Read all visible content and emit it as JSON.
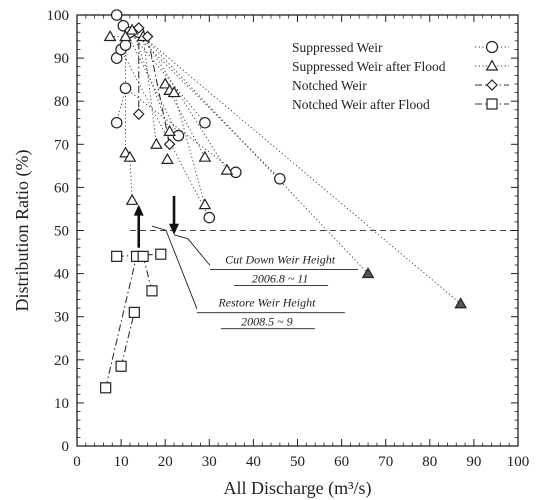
{
  "chart_data": {
    "type": "scatter",
    "xlabel": "All Discharge (m³/s)",
    "ylabel": "Distribution Ratio (%)",
    "xlim": [
      0,
      100
    ],
    "ylim": [
      0,
      100
    ],
    "xticks": [
      "0",
      "10",
      "20",
      "30",
      "40",
      "50",
      "60",
      "70",
      "80",
      "90",
      "100"
    ],
    "yticks": [
      "0",
      "10",
      "20",
      "30",
      "40",
      "50",
      "60",
      "70",
      "80",
      "90",
      "100"
    ],
    "grid": false,
    "legend_position": "top-right",
    "reference_line_y": 50,
    "series": [
      {
        "name": "Suppressed Weir",
        "marker": "circle",
        "line": "dotted",
        "points": [
          [
            9,
            100
          ],
          [
            10.5,
            97.5
          ],
          [
            12,
            96
          ],
          [
            9,
            90
          ],
          [
            10,
            92
          ],
          [
            11,
            93
          ],
          [
            9,
            75
          ],
          [
            11,
            83
          ],
          [
            14,
            96
          ],
          [
            23,
            72
          ],
          [
            29,
            75
          ],
          [
            30,
            53
          ],
          [
            36,
            63.5
          ],
          [
            46,
            62
          ]
        ]
      },
      {
        "name": "Suppressed Weir after Flood",
        "marker": "triangle",
        "line": "dotted",
        "points": [
          [
            7.5,
            95
          ],
          [
            11,
            95
          ],
          [
            12.5,
            96.5
          ],
          [
            15,
            95
          ],
          [
            11,
            68
          ],
          [
            12,
            67
          ],
          [
            18,
            70
          ],
          [
            20,
            84
          ],
          [
            21,
            82.5
          ],
          [
            22,
            82
          ],
          [
            21,
            73
          ],
          [
            20.5,
            66.5
          ],
          [
            29,
            67
          ],
          [
            29,
            56
          ],
          [
            34,
            64
          ],
          [
            12.5,
            57
          ],
          [
            66,
            40
          ],
          [
            87,
            33
          ]
        ]
      },
      {
        "name": "Notched Weir",
        "marker": "diamond",
        "line": "dashdot",
        "points": [
          [
            14,
            97
          ],
          [
            16,
            95
          ],
          [
            14,
            77
          ],
          [
            21,
            70
          ]
        ]
      },
      {
        "name": "Notched Weir after Flood",
        "marker": "square",
        "line": "dashdot",
        "points": [
          [
            6.5,
            13.5
          ],
          [
            10,
            18.5
          ],
          [
            13,
            31
          ],
          [
            13.5,
            44
          ],
          [
            15,
            44
          ],
          [
            9,
            44
          ],
          [
            17,
            36
          ],
          [
            19,
            44.5
          ]
        ]
      }
    ],
    "connectors": [
      {
        "series": 0,
        "from": 0,
        "to": 13
      },
      {
        "series": 0,
        "from": 1,
        "to": 9
      },
      {
        "series": 0,
        "from": 2,
        "to": 10
      },
      {
        "series": 0,
        "from": 4,
        "to": 11
      },
      {
        "series": 0,
        "from": 6,
        "to": 7
      },
      {
        "series": 0,
        "from": 7,
        "to": 12
      },
      {
        "series": 1,
        "from": 0,
        "to": 1
      },
      {
        "series": 1,
        "from": 1,
        "to": 4
      },
      {
        "series": 1,
        "from": 2,
        "to": 10
      },
      {
        "series": 1,
        "from": 3,
        "to": 6
      },
      {
        "series": 1,
        "from": 3,
        "to": 14
      },
      {
        "series": 1,
        "from": 3,
        "to": 16
      },
      {
        "series": 1,
        "from": 3,
        "to": 17
      },
      {
        "series": 1,
        "from": 5,
        "to": 15
      },
      {
        "series": 1,
        "from": 7,
        "to": 12
      },
      {
        "series": 1,
        "from": 9,
        "to": 13
      },
      {
        "series": 2,
        "from": 0,
        "to": 2
      },
      {
        "series": 2,
        "from": 1,
        "to": 3
      },
      {
        "series": 3,
        "from": 0,
        "to": 3
      },
      {
        "series": 3,
        "from": 1,
        "to": 2
      },
      {
        "series": 3,
        "from": 3,
        "to": 4
      },
      {
        "series": 3,
        "from": 4,
        "to": 6
      },
      {
        "series": 3,
        "from": 5,
        "to": 7
      }
    ],
    "annotations": [
      {
        "line1": "Cut Down Weir Height",
        "line2": "2006.8 ~ 11",
        "arrow": "down",
        "arrow_x": 22,
        "arrow_from": 58,
        "arrow_to": 49,
        "leader_from": [
          22,
          49
        ],
        "label_x": 32,
        "label_y": 40
      },
      {
        "line1": "Restore Weir Height",
        "line2": "2008.5 ~ 9",
        "arrow": "up",
        "arrow_x": 14,
        "arrow_from": 46,
        "arrow_to": 56,
        "leader_from": [
          17,
          51
        ],
        "label_x": 29,
        "label_y": 30
      }
    ]
  }
}
